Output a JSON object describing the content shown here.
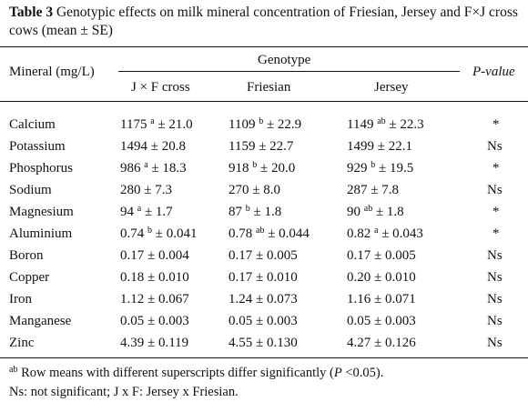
{
  "caption": {
    "label": "Table 3",
    "text": " Genotypic effects on milk mineral concentration of Friesian, Jersey and F×J cross cows (mean ± SE)"
  },
  "header": {
    "mineral": "Mineral (mg/L)",
    "genotype": "Genotype",
    "pvalue": "P-value",
    "cols": [
      "J × F cross",
      "Friesian",
      "Jersey"
    ]
  },
  "rows": [
    {
      "mineral": "Calcium",
      "jf": {
        "v": "1175",
        "s": "a",
        "e": "± 21.0"
      },
      "fr": {
        "v": "1109",
        "s": "b",
        "e": "± 22.9"
      },
      "je": {
        "v": "1149",
        "s": "ab",
        "e": "± 22.3"
      },
      "p": "*"
    },
    {
      "mineral": "Potassium",
      "jf": {
        "v": "1494",
        "s": "",
        "e": "± 20.8"
      },
      "fr": {
        "v": "1159",
        "s": "",
        "e": "± 22.7"
      },
      "je": {
        "v": "1499",
        "s": "",
        "e": "± 22.1"
      },
      "p": "Ns"
    },
    {
      "mineral": "Phosphorus",
      "jf": {
        "v": "986",
        "s": "a",
        "e": "± 18.3"
      },
      "fr": {
        "v": "918",
        "s": "b",
        "e": "± 20.0"
      },
      "je": {
        "v": "929",
        "s": "b",
        "e": "± 19.5"
      },
      "p": "*"
    },
    {
      "mineral": "Sodium",
      "jf": {
        "v": "280",
        "s": "",
        "e": "± 7.3"
      },
      "fr": {
        "v": "270",
        "s": "",
        "e": "± 8.0"
      },
      "je": {
        "v": "287",
        "s": "",
        "e": "± 7.8"
      },
      "p": "Ns"
    },
    {
      "mineral": "Magnesium",
      "jf": {
        "v": "94",
        "s": "a",
        "e": "± 1.7"
      },
      "fr": {
        "v": "87",
        "s": "b",
        "e": "± 1.8"
      },
      "je": {
        "v": "90",
        "s": "ab",
        "e": "± 1.8"
      },
      "p": "*"
    },
    {
      "mineral": "Aluminium",
      "jf": {
        "v": "0.74",
        "s": "b",
        "e": "± 0.041"
      },
      "fr": {
        "v": "0.78",
        "s": "ab",
        "e": "± 0.044"
      },
      "je": {
        "v": "0.82",
        "s": "a",
        "e": "± 0.043"
      },
      "p": "*"
    },
    {
      "mineral": "Boron",
      "jf": {
        "v": "0.17",
        "s": "",
        "e": "± 0.004"
      },
      "fr": {
        "v": "0.17",
        "s": "",
        "e": "± 0.005"
      },
      "je": {
        "v": "0.17",
        "s": "",
        "e": "± 0.005"
      },
      "p": "Ns"
    },
    {
      "mineral": "Copper",
      "jf": {
        "v": "0.18",
        "s": "",
        "e": "± 0.010"
      },
      "fr": {
        "v": "0.17",
        "s": "",
        "e": "± 0.010"
      },
      "je": {
        "v": "0.20",
        "s": "",
        "e": "± 0.010"
      },
      "p": "Ns"
    },
    {
      "mineral": "Iron",
      "jf": {
        "v": "1.12",
        "s": "",
        "e": "± 0.067"
      },
      "fr": {
        "v": "1.24",
        "s": "",
        "e": "± 0.073"
      },
      "je": {
        "v": "1.16",
        "s": "",
        "e": "± 0.071"
      },
      "p": "Ns"
    },
    {
      "mineral": "Manganese",
      "jf": {
        "v": "0.05",
        "s": "",
        "e": "± 0.003"
      },
      "fr": {
        "v": "0.05",
        "s": "",
        "e": "± 0.003"
      },
      "je": {
        "v": "0.05",
        "s": "",
        "e": "± 0.003"
      },
      "p": "Ns"
    },
    {
      "mineral": "Zinc",
      "jf": {
        "v": "4.39",
        "s": "",
        "e": "± 0.119"
      },
      "fr": {
        "v": "4.55",
        "s": "",
        "e": "± 0.130"
      },
      "je": {
        "v": "4.27",
        "s": "",
        "e": "± 0.126"
      },
      "p": "Ns"
    }
  ],
  "footnotes": {
    "sig_sup": "ab",
    "sig_text": " Row means with different superscripts differ significantly (",
    "sig_p": "P",
    "sig_end": " <0.05).",
    "abbrev": "Ns:  not significant; J x F: Jersey x Friesian."
  }
}
